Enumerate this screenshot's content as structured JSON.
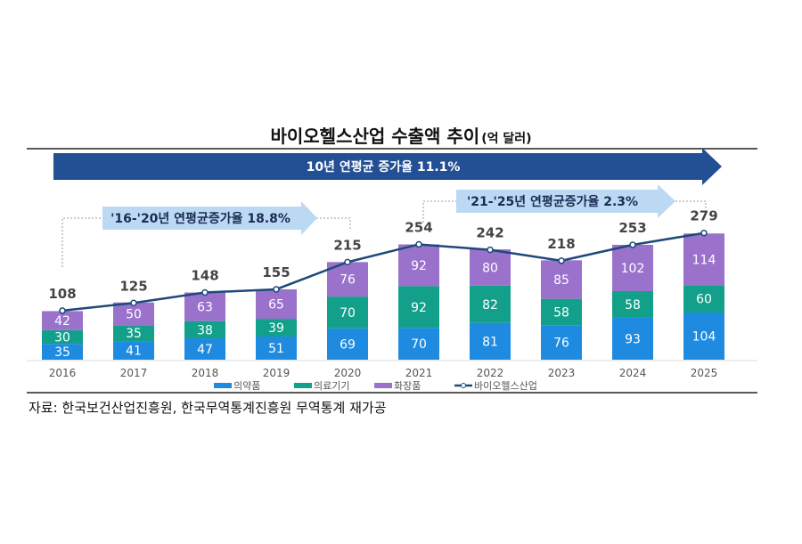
{
  "chart_data": {
    "type": "bar",
    "stacked": true,
    "title": "바이오헬스산업 수출액 추이",
    "unit": "(억 달러)",
    "categories": [
      "2016",
      "2017",
      "2018",
      "2019",
      "2020",
      "2021",
      "2022",
      "2023",
      "2024",
      "2025"
    ],
    "series": [
      {
        "name": "의약품",
        "color": "#1f8be0",
        "values": [
          35,
          41,
          47,
          51,
          69,
          70,
          81,
          76,
          93,
          104
        ]
      },
      {
        "name": "의료기기",
        "color": "#12a08a",
        "values": [
          30,
          35,
          38,
          39,
          70,
          92,
          82,
          58,
          58,
          60
        ]
      },
      {
        "name": "화장품",
        "color": "#9a72cc",
        "values": [
          42,
          50,
          63,
          65,
          76,
          92,
          80,
          85,
          102,
          114
        ]
      }
    ],
    "line": {
      "name": "바이오헬스산업",
      "color": "#1d4a7a",
      "values": [
        108,
        125,
        148,
        155,
        215,
        254,
        242,
        218,
        253,
        279
      ]
    },
    "annotations": {
      "overall": "10년 연평균 증가율 11.1%",
      "period1": "'16-'20년 연평균증가율 18.8%",
      "period2": "'21-'25년 연평균증가율 2.3%"
    },
    "legend_position": "bottom",
    "grid": false
  },
  "source": "자료: 한국보건산업진흥원, 한국무역통계진흥원 무역통계 재가공"
}
